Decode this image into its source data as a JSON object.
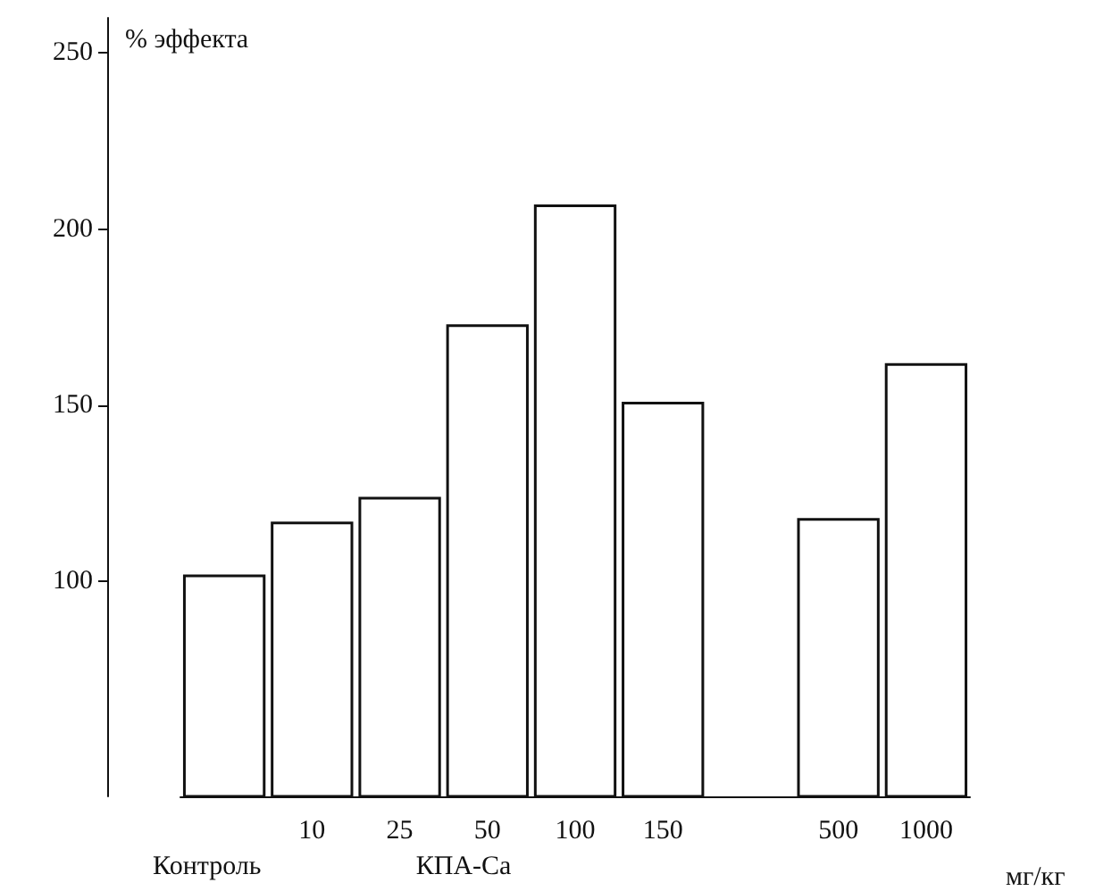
{
  "chart_data": {
    "type": "bar",
    "ylabel": "% эффекта",
    "xlabel": "мг/кг",
    "categories": [
      null,
      "10",
      "25",
      "50",
      "100",
      "150",
      null,
      "500",
      "1000"
    ],
    "values": [
      102,
      117,
      124,
      173,
      207,
      151,
      null,
      118,
      162
    ],
    "color": "#ffffff",
    "ylim": [
      39,
      260
    ],
    "yticks": [
      100,
      150,
      200,
      250
    ],
    "annotations": [
      "Контроль",
      "КПА-Са"
    ],
    "grid": false
  }
}
